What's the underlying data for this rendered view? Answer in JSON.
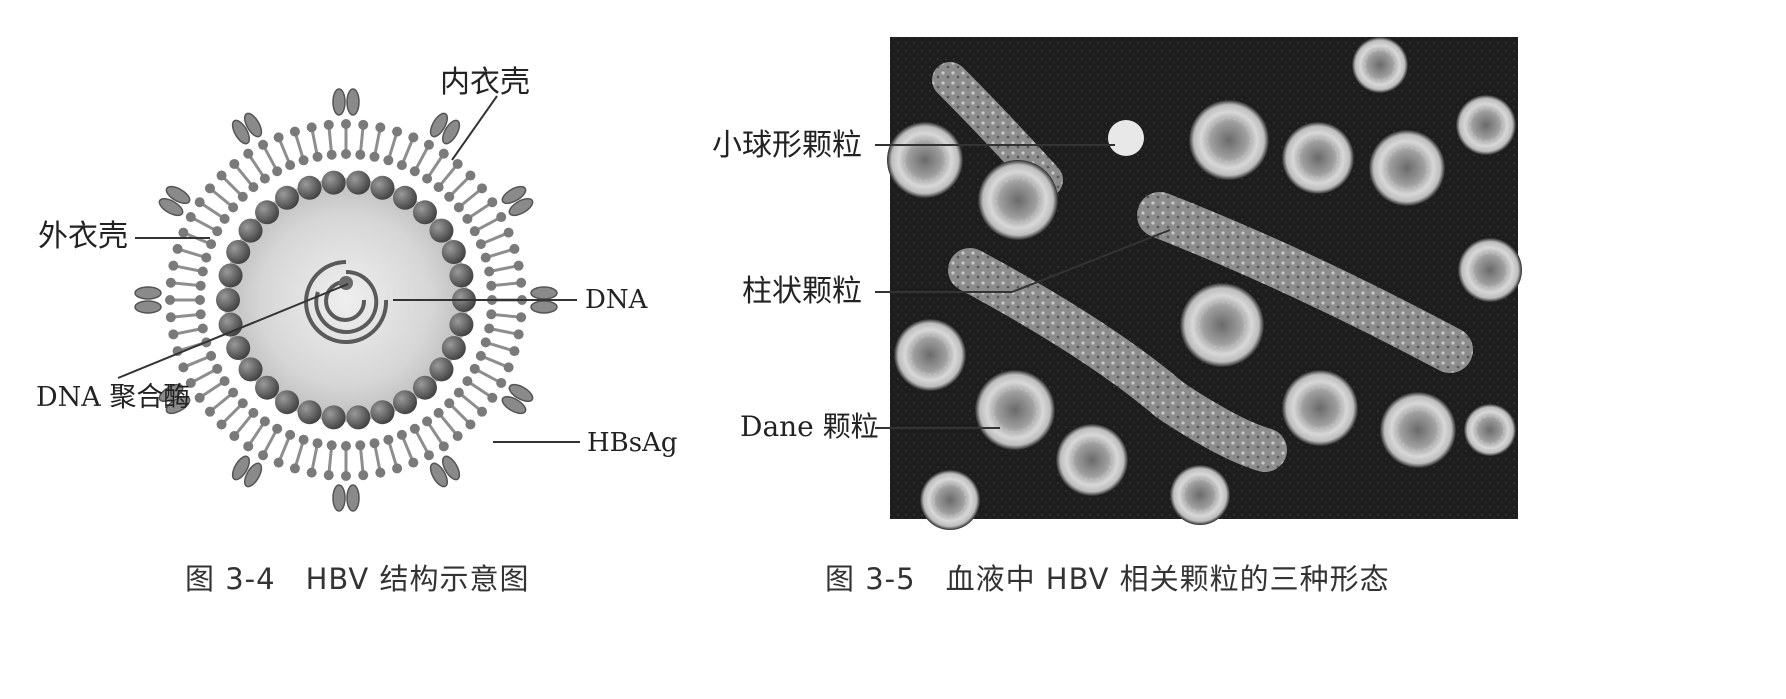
{
  "figure_left": {
    "labels": {
      "inner_capsid": "内衣壳",
      "outer_envelope": "外衣壳",
      "dna": "DNA",
      "dna_polymerase": "DNA 聚合酶",
      "hbsag": "HBsAg"
    },
    "caption": "图 3-4　HBV 结构示意图"
  },
  "figure_right": {
    "labels": {
      "small_spherical": "小球形颗粒",
      "tubular": "柱状颗粒",
      "dane": "Dane 颗粒"
    },
    "caption": "图 3-5　血液中 HBV 相关颗粒的三种形态"
  },
  "colors": {
    "envelope": "#8a8a8a",
    "capsomer": "#555555",
    "core_fill": "#d8d8d8",
    "micrograph_bg": "#1c1c1c"
  }
}
